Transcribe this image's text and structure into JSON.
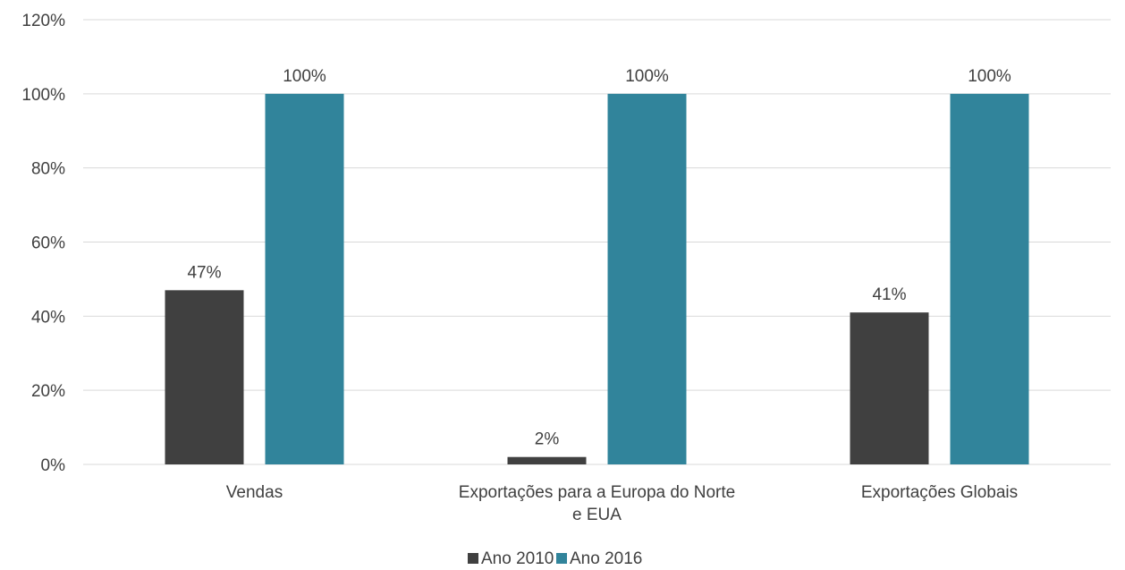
{
  "chart_data": {
    "type": "bar",
    "title": "",
    "xlabel": "",
    "ylabel": "",
    "categories": [
      [
        "Vendas"
      ],
      [
        "Exportações para a Europa do Norte",
        "e EUA"
      ],
      [
        "Exportações Globais"
      ]
    ],
    "series": [
      {
        "name": "Ano 2010",
        "values": [
          47,
          2,
          41
        ],
        "labels": [
          "47%",
          "2%",
          "41%"
        ]
      },
      {
        "name": "Ano 2016",
        "values": [
          100,
          100,
          100
        ],
        "labels": [
          "100%",
          "100%",
          "100%"
        ]
      }
    ],
    "ylim": [
      0,
      120
    ],
    "yticks": [
      "0%",
      "20%",
      "40%",
      "60%",
      "80%",
      "100%",
      "120%"
    ],
    "grid": true,
    "legend_position": "bottom",
    "colors": {
      "Ano 2010": "#404040",
      "Ano 2016": "#31849b",
      "grid": "#d9d9d9"
    }
  }
}
